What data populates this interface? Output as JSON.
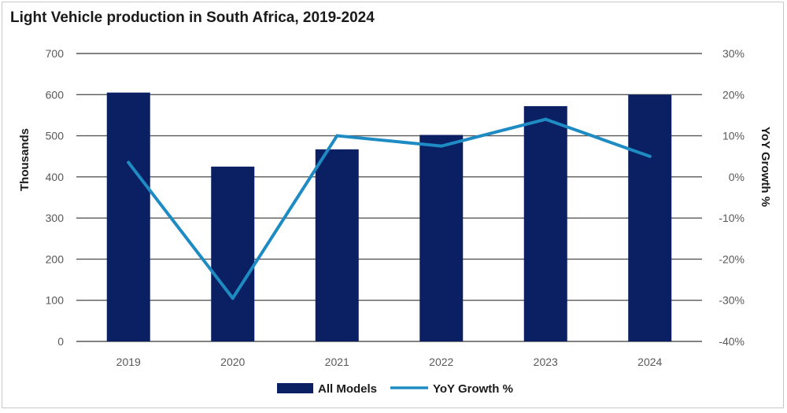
{
  "colors": {
    "bars": "#0b1f63",
    "line": "#1e8bc3",
    "grid": "#595959",
    "tick_text": "#595959"
  },
  "chart_data": {
    "type": "bar",
    "title": "Light Vehicle production in South Africa, 2019-2024",
    "ylabel": "Thousands",
    "y2label": "YoY Growth %",
    "categories": [
      "2019",
      "2020",
      "2021",
      "2022",
      "2023",
      "2024"
    ],
    "ylim": [
      0,
      700
    ],
    "yticks": [
      0,
      100,
      200,
      300,
      400,
      500,
      600,
      700
    ],
    "y2lim": [
      -40,
      30
    ],
    "y2ticks": [
      "-40%",
      "-30%",
      "-20%",
      "-10%",
      "0%",
      "10%",
      "20%",
      "30%"
    ],
    "y2tick_values": [
      -40,
      -30,
      -20,
      -10,
      0,
      10,
      20,
      30
    ],
    "series": [
      {
        "name": "All Models",
        "type": "bar",
        "axis": "left",
        "values": [
          605,
          425,
          467,
          502,
          572,
          600
        ]
      },
      {
        "name": "YoY Growth %",
        "type": "line",
        "axis": "right",
        "values": [
          3.5,
          -29.5,
          10,
          7.5,
          14,
          5
        ]
      }
    ],
    "legend_position": "bottom",
    "grid": true
  }
}
